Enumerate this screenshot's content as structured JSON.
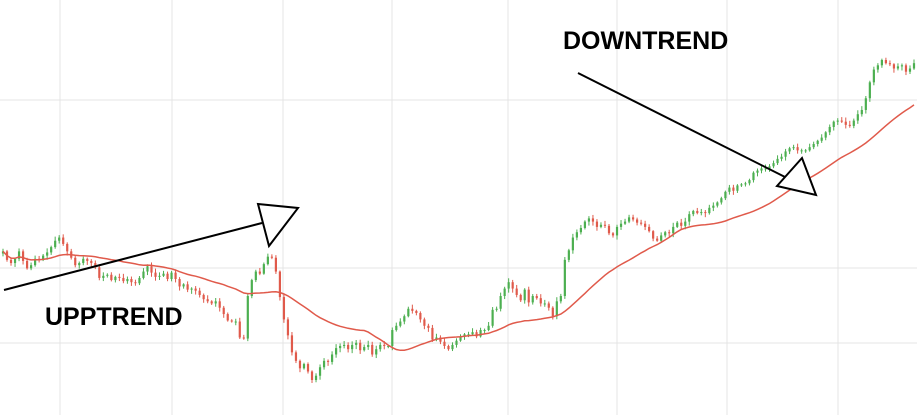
{
  "chart_data": {
    "type": "candlestick",
    "title": "",
    "xlabel": "",
    "ylabel": "",
    "grid": true,
    "moving_average_color": "#e05a4b",
    "up_color": "#4caf50",
    "down_color": "#e05a4b",
    "grid_color": "#e4e4e4",
    "annotations": [
      {
        "text": "UPPTREND",
        "direction": "up"
      },
      {
        "text": "DOWNTREND",
        "direction": "down"
      }
    ],
    "price": [
      195,
      187,
      184,
      188,
      195,
      186,
      179,
      182,
      188,
      187,
      191,
      194,
      199,
      205,
      208,
      202,
      195,
      189,
      182,
      184,
      188,
      186,
      184,
      180,
      170,
      172,
      173,
      168,
      171,
      170,
      167,
      169,
      166,
      165,
      170,
      176,
      181,
      175,
      171,
      172,
      174,
      169,
      175,
      169,
      162,
      164,
      159,
      160,
      158,
      154,
      150,
      148,
      146,
      148,
      142,
      136,
      130,
      129,
      129,
      114,
      113,
      153,
      168,
      176,
      174,
      183,
      190,
      189,
      176,
      152,
      131,
      116,
      100,
      92,
      85,
      89,
      82,
      74,
      78,
      86,
      92,
      91,
      98,
      104,
      106,
      107,
      103,
      107,
      109,
      102,
      105,
      107,
      98,
      103,
      107,
      106,
      106,
      121,
      125,
      129,
      134,
      141,
      139,
      137,
      131,
      125,
      123,
      112,
      114,
      110,
      106,
      103,
      107,
      111,
      115,
      117,
      117,
      119,
      115,
      121,
      121,
      125,
      140,
      141,
      153,
      160,
      166,
      160,
      154,
      149,
      159,
      147,
      153,
      151,
      146,
      146,
      142,
      134,
      148,
      153,
      187,
      196,
      208,
      213,
      217,
      223,
      226,
      223,
      218,
      220,
      219,
      212,
      210,
      218,
      221,
      223,
      227,
      225,
      222,
      221,
      218,
      214,
      207,
      205,
      210,
      213,
      212,
      218,
      222,
      219,
      223,
      230,
      233,
      231,
      232,
      231,
      236,
      238,
      241,
      245,
      251,
      255,
      252,
      257,
      258,
      259,
      262,
      269,
      271,
      273,
      273,
      275,
      278,
      282,
      284,
      289,
      292,
      293,
      290,
      290,
      290,
      293,
      296,
      299,
      302,
      307,
      312,
      317,
      318,
      317,
      314,
      313,
      318,
      324,
      328,
      339,
      354,
      366,
      370,
      375,
      372,
      371,
      367,
      369,
      370,
      364,
      367,
      372
    ]
  }
}
